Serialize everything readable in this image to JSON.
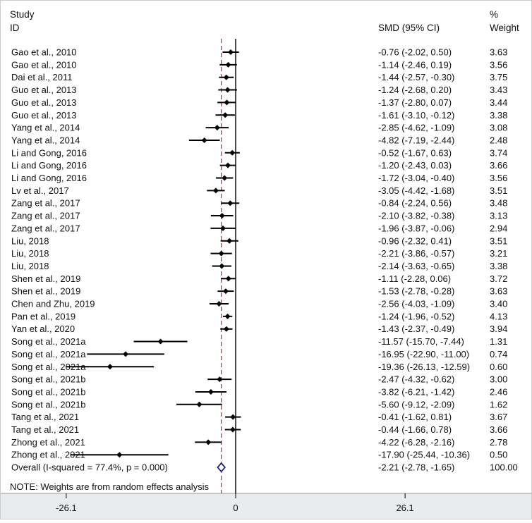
{
  "header": {
    "study_line1": "Study",
    "study_line2": "ID",
    "smd_label": "SMD (95% CI)",
    "weight_line1": "%",
    "weight_line2": "Weight"
  },
  "note": "NOTE: Weights are from random effects analysis",
  "colors": {
    "marker": "#000000",
    "overall_diamond": "#1a237e",
    "reference_line": "#c0392b",
    "axis_band": "#e8ecef"
  },
  "chart_data": {
    "type": "forest",
    "xlabel": "",
    "tick_labels": [
      "-26.1",
      "0",
      "26.1"
    ],
    "tick_values": [
      -26.1,
      0,
      26.1
    ],
    "xlim": [
      -36.3,
      44.8
    ],
    "null_line": 0,
    "studies": [
      {
        "label": "Gao et al., 2010",
        "smd": -0.76,
        "lo": -2.02,
        "hi": 0.5,
        "ci_text": "-0.76 (-2.02, 0.50)",
        "weight": "3.63"
      },
      {
        "label": "Gao et al., 2010",
        "smd": -1.14,
        "lo": -2.46,
        "hi": 0.19,
        "ci_text": "-1.14 (-2.46, 0.19)",
        "weight": "3.56"
      },
      {
        "label": "Dai et al., 2011",
        "smd": -1.44,
        "lo": -2.57,
        "hi": -0.3,
        "ci_text": "-1.44 (-2.57, -0.30)",
        "weight": "3.75"
      },
      {
        "label": "Guo et al., 2013",
        "smd": -1.24,
        "lo": -2.68,
        "hi": 0.2,
        "ci_text": "-1.24 (-2.68, 0.20)",
        "weight": "3.43"
      },
      {
        "label": "Guo et al., 2013",
        "smd": -1.37,
        "lo": -2.8,
        "hi": 0.07,
        "ci_text": "-1.37 (-2.80, 0.07)",
        "weight": "3.44"
      },
      {
        "label": "Guo et al., 2013",
        "smd": -1.61,
        "lo": -3.1,
        "hi": -0.12,
        "ci_text": "-1.61 (-3.10, -0.12)",
        "weight": "3.38"
      },
      {
        "label": "Yang et al., 2014",
        "smd": -2.85,
        "lo": -4.62,
        "hi": -1.09,
        "ci_text": "-2.85 (-4.62, -1.09)",
        "weight": "3.08"
      },
      {
        "label": "Yang et al., 2014",
        "smd": -4.82,
        "lo": -7.19,
        "hi": -2.44,
        "ci_text": "-4.82 (-7.19, -2.44)",
        "weight": "2.48"
      },
      {
        "label": "Li and Gong, 2016",
        "smd": -0.52,
        "lo": -1.67,
        "hi": 0.63,
        "ci_text": "-0.52 (-1.67, 0.63)",
        "weight": "3.74"
      },
      {
        "label": "Li and Gong, 2016",
        "smd": -1.2,
        "lo": -2.43,
        "hi": 0.03,
        "ci_text": "-1.20 (-2.43, 0.03)",
        "weight": "3.66"
      },
      {
        "label": "Li and Gong, 2016",
        "smd": -1.72,
        "lo": -3.04,
        "hi": -0.4,
        "ci_text": "-1.72 (-3.04, -0.40)",
        "weight": "3.56"
      },
      {
        "label": "Lv et al., 2017",
        "smd": -3.05,
        "lo": -4.42,
        "hi": -1.68,
        "ci_text": "-3.05 (-4.42, -1.68)",
        "weight": "3.51"
      },
      {
        "label": "Zang et al., 2017",
        "smd": -0.84,
        "lo": -2.24,
        "hi": 0.56,
        "ci_text": "-0.84 (-2.24, 0.56)",
        "weight": "3.48"
      },
      {
        "label": "Zang et al., 2017",
        "smd": -2.1,
        "lo": -3.82,
        "hi": -0.38,
        "ci_text": "-2.10 (-3.82, -0.38)",
        "weight": "3.13"
      },
      {
        "label": "Zang et al., 2017",
        "smd": -1.96,
        "lo": -3.87,
        "hi": -0.06,
        "ci_text": "-1.96 (-3.87, -0.06)",
        "weight": "2.94"
      },
      {
        "label": "Liu, 2018",
        "smd": -0.96,
        "lo": -2.32,
        "hi": 0.41,
        "ci_text": "-0.96 (-2.32, 0.41)",
        "weight": "3.51"
      },
      {
        "label": "Liu, 2018",
        "smd": -2.21,
        "lo": -3.86,
        "hi": -0.57,
        "ci_text": "-2.21 (-3.86, -0.57)",
        "weight": "3.21"
      },
      {
        "label": "Liu, 2018",
        "smd": -2.14,
        "lo": -3.63,
        "hi": -0.65,
        "ci_text": "-2.14 (-3.63, -0.65)",
        "weight": "3.38"
      },
      {
        "label": "Shen et al., 2019",
        "smd": -1.11,
        "lo": -2.28,
        "hi": 0.06,
        "ci_text": "-1.11 (-2.28, 0.06)",
        "weight": "3.72"
      },
      {
        "label": "Shen et al., 2019",
        "smd": -1.53,
        "lo": -2.78,
        "hi": -0.28,
        "ci_text": "-1.53 (-2.78, -0.28)",
        "weight": "3.63"
      },
      {
        "label": "Chen and Zhu, 2019",
        "smd": -2.56,
        "lo": -4.03,
        "hi": -1.09,
        "ci_text": "-2.56 (-4.03, -1.09)",
        "weight": "3.40"
      },
      {
        "label": "Pan et al., 2019",
        "smd": -1.24,
        "lo": -1.96,
        "hi": -0.52,
        "ci_text": "-1.24 (-1.96, -0.52)",
        "weight": "4.13"
      },
      {
        "label": "Yan et al., 2020",
        "smd": -1.43,
        "lo": -2.37,
        "hi": -0.49,
        "ci_text": "-1.43 (-2.37, -0.49)",
        "weight": "3.94"
      },
      {
        "label": "Song et al., 2021a",
        "smd": -11.57,
        "lo": -15.7,
        "hi": -7.44,
        "ci_text": "-11.57 (-15.70, -7.44)",
        "weight": "1.31"
      },
      {
        "label": "Song et al., 2021a",
        "smd": -16.95,
        "lo": -22.9,
        "hi": -11.0,
        "ci_text": "-16.95 (-22.90, -11.00)",
        "weight": "0.74"
      },
      {
        "label": "Song et al., 2021a",
        "smd": -19.36,
        "lo": -26.13,
        "hi": -12.59,
        "ci_text": "-19.36 (-26.13, -12.59)",
        "weight": "0.60"
      },
      {
        "label": "Song et al., 2021b",
        "smd": -2.47,
        "lo": -4.32,
        "hi": -0.62,
        "ci_text": "-2.47 (-4.32, -0.62)",
        "weight": "3.00"
      },
      {
        "label": "Song et al., 2021b",
        "smd": -3.82,
        "lo": -6.21,
        "hi": -1.42,
        "ci_text": "-3.82 (-6.21, -1.42)",
        "weight": "2.46"
      },
      {
        "label": "Song et al., 2021b",
        "smd": -5.6,
        "lo": -9.12,
        "hi": -2.09,
        "ci_text": "-5.60 (-9.12, -2.09)",
        "weight": "1.62"
      },
      {
        "label": "Tang et al., 2021",
        "smd": -0.41,
        "lo": -1.62,
        "hi": 0.81,
        "ci_text": "-0.41 (-1.62, 0.81)",
        "weight": "3.67"
      },
      {
        "label": "Tang et al., 2021",
        "smd": -0.44,
        "lo": -1.66,
        "hi": 0.78,
        "ci_text": "-0.44 (-1.66, 0.78)",
        "weight": "3.66"
      },
      {
        "label": "Zhong et al., 2021",
        "smd": -4.22,
        "lo": -6.28,
        "hi": -2.16,
        "ci_text": "-4.22 (-6.28, -2.16)",
        "weight": "2.78"
      },
      {
        "label": "Zhong et al., 2021",
        "smd": -17.9,
        "lo": -25.44,
        "hi": -10.36,
        "ci_text": "-17.90 (-25.44, -10.36)",
        "weight": "0.50"
      }
    ],
    "overall": {
      "label": "Overall  (I-squared = 77.4%, p = 0.000)",
      "smd": -2.21,
      "lo": -2.78,
      "hi": -1.65,
      "ci_text": "-2.21 (-2.78, -1.65)",
      "weight": "100.00"
    }
  }
}
